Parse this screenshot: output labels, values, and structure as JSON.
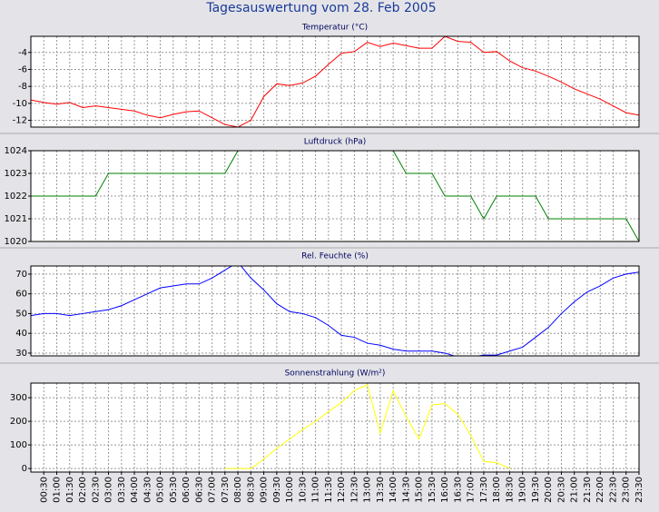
{
  "title": "Tagesauswertung vom 28. Feb 2005",
  "chart_data": [
    {
      "type": "line",
      "title": "Temperatur (°C)",
      "color": "#ff0000",
      "grid": true,
      "ylim": [
        -12.8,
        -2.1
      ],
      "yticks": [
        -4,
        -6,
        -8,
        -10,
        -12
      ],
      "values": [
        -9.6,
        -9.9,
        -10.1,
        -9.9,
        -10.5,
        -10.3,
        -10.5,
        -10.7,
        -10.9,
        -11.4,
        -11.7,
        -11.3,
        -11.0,
        -10.9,
        -11.7,
        -12.5,
        -12.8,
        -12.0,
        -9.2,
        -7.7,
        -7.9,
        -7.6,
        -6.8,
        -5.4,
        -4.1,
        -3.9,
        -2.8,
        -3.3,
        -2.9,
        -3.2,
        -3.5,
        -3.5,
        -2.1,
        -2.7,
        -2.8,
        -4.0,
        -3.9,
        -5.0,
        -5.8,
        -6.2,
        -6.8,
        -7.5,
        -8.3,
        -8.9,
        -9.5,
        -10.3,
        -11.1,
        -11.4
      ]
    },
    {
      "type": "line",
      "title": "Luftdruck (hPa)",
      "color": "#008000",
      "grid": true,
      "ylim": [
        1020,
        1024
      ],
      "yticks": [
        1024,
        1023,
        1022,
        1021,
        1020
      ],
      "values": [
        1022,
        1022,
        1022,
        1022,
        1022,
        1022,
        1023,
        1023,
        1023,
        1023,
        1023,
        1023,
        1023,
        1023,
        1023,
        1023,
        1024,
        1024,
        1024,
        1024,
        1024,
        1024,
        1024,
        1024,
        1024,
        1024,
        1024,
        1024,
        1024,
        1023,
        1023,
        1023,
        1022,
        1022,
        1022,
        1021,
        1022,
        1022,
        1022,
        1022,
        1021,
        1021,
        1021,
        1021,
        1021,
        1021,
        1021,
        1020
      ]
    },
    {
      "type": "line",
      "title": "Rel. Feuchte (%)",
      "color": "#0000ff",
      "grid": true,
      "ylim": [
        28.6,
        74.1
      ],
      "yticks": [
        70,
        60,
        50,
        40,
        30
      ],
      "values": [
        49,
        50,
        50,
        49,
        50,
        51,
        52,
        54,
        57,
        60,
        63,
        64,
        65,
        65,
        68,
        72,
        76,
        68,
        62,
        55,
        51,
        50,
        48,
        44,
        39,
        38,
        35,
        34,
        32,
        31,
        31,
        31,
        30,
        28,
        28,
        29,
        29,
        31,
        33,
        38,
        43,
        50,
        56,
        61,
        64,
        68,
        70,
        71
      ]
    },
    {
      "type": "line",
      "title": "Sonnenstrahlung (W/m²)",
      "color": "#ffff00",
      "grid": true,
      "ylim": [
        -15,
        362
      ],
      "yticks": [
        300,
        200,
        100,
        0
      ],
      "values": [
        null,
        null,
        null,
        null,
        null,
        null,
        null,
        null,
        null,
        null,
        null,
        null,
        null,
        null,
        null,
        0,
        0,
        0,
        40,
        85,
        125,
        165,
        200,
        240,
        280,
        330,
        355,
        150,
        330,
        220,
        125,
        270,
        275,
        230,
        140,
        30,
        25,
        0,
        null,
        null,
        null,
        null,
        null,
        null,
        null,
        null,
        null,
        null
      ],
      "categories": [
        null,
        "00:30",
        "01:00",
        "01:30",
        "02:00",
        "02:30",
        "03:00",
        "03:30",
        "04:00",
        "04:30",
        "05:00",
        "05:30",
        "06:00",
        "06:30",
        "07:00",
        "07:30",
        "08:00",
        "08:30",
        "09:00",
        "09:30",
        "10:00",
        "10:30",
        "11:00",
        "11:30",
        "12:00",
        "12:30",
        "13:00",
        "13:30",
        "14:00",
        "14:30",
        "15:00",
        "15:30",
        "16:00",
        "16:30",
        "17:00",
        "17:30",
        "18:00",
        "18:30",
        "19:00",
        "19:30",
        "20:00",
        "20:30",
        "21:00",
        "21:30",
        "22:00",
        "22:30",
        "23:00",
        "23:30"
      ]
    }
  ]
}
